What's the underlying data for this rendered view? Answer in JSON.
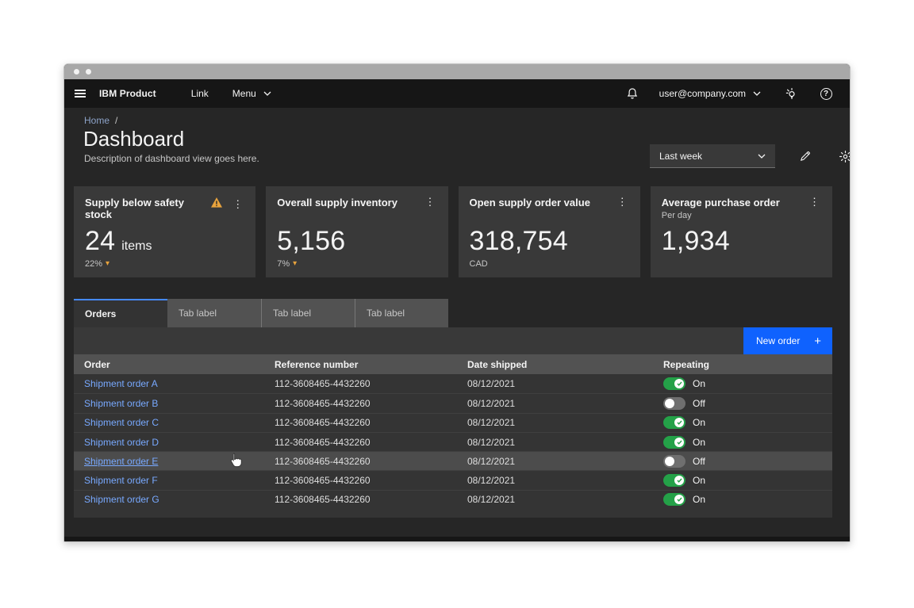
{
  "colors": {
    "accent": "#0f62fe",
    "link": "#78a9ff",
    "warning": "#e8a33d",
    "toggle-on": "#24a148",
    "toggle-off": "#6f6f6f",
    "tab-border": "#4589ff",
    "header-bg": "#161616",
    "content-bg": "#262626",
    "layer": "#393939",
    "layer2": "#525252"
  },
  "glyphs": {
    "breadcrumb_sep": "/",
    "delta_down": "▾",
    "plus": "+",
    "kebab": "⋮",
    "question": "?"
  },
  "header": {
    "product": "IBM Product",
    "link_label": "Link",
    "menu_label": "Menu",
    "user_email": "user@company.com"
  },
  "page": {
    "breadcrumb": "Home",
    "title": "Dashboard",
    "description": "Description of dashboard view goes here.",
    "filter_value": "Last week"
  },
  "cards": [
    {
      "title": "Supply below safety stock",
      "subtitle": "",
      "value": "24",
      "unit": "items",
      "delta": "22%",
      "sub_label": "",
      "warning": true
    },
    {
      "title": "Overall supply inventory",
      "subtitle": "",
      "value": "5,156",
      "unit": "",
      "delta": "7%",
      "sub_label": "",
      "warning": false
    },
    {
      "title": "Open supply order value",
      "subtitle": "",
      "value": "318,754",
      "unit": "",
      "delta": "",
      "sub_label": "CAD",
      "warning": false
    },
    {
      "title": "Average purchase order",
      "subtitle": "Per day",
      "value": "1,934",
      "unit": "",
      "delta": "",
      "sub_label": "",
      "warning": false
    }
  ],
  "tabs": [
    {
      "label": "Orders",
      "active": true
    },
    {
      "label": "Tab label",
      "active": false
    },
    {
      "label": "Tab label",
      "active": false
    },
    {
      "label": "Tab label",
      "active": false
    }
  ],
  "table": {
    "new_order_label": "New order",
    "columns": [
      "Order",
      "Reference number",
      "Date shipped",
      "Repeating"
    ],
    "rows": [
      {
        "order": "Shipment order A",
        "ref": "112-3608465-4432260",
        "date": "08/12/2021",
        "toggle": "On",
        "hover": false
      },
      {
        "order": "Shipment order B",
        "ref": "112-3608465-4432260",
        "date": "08/12/2021",
        "toggle": "Off",
        "hover": false
      },
      {
        "order": "Shipment order C",
        "ref": "112-3608465-4432260",
        "date": "08/12/2021",
        "toggle": "On",
        "hover": false
      },
      {
        "order": "Shipment order D",
        "ref": "112-3608465-4432260",
        "date": "08/12/2021",
        "toggle": "On",
        "hover": false
      },
      {
        "order": "Shipment order E",
        "ref": "112-3608465-4432260",
        "date": "08/12/2021",
        "toggle": "Off",
        "hover": true
      },
      {
        "order": "Shipment order F",
        "ref": "112-3608465-4432260",
        "date": "08/12/2021",
        "toggle": "On",
        "hover": false
      },
      {
        "order": "Shipment order G",
        "ref": "112-3608465-4432260",
        "date": "08/12/2021",
        "toggle": "On",
        "hover": false
      }
    ]
  }
}
